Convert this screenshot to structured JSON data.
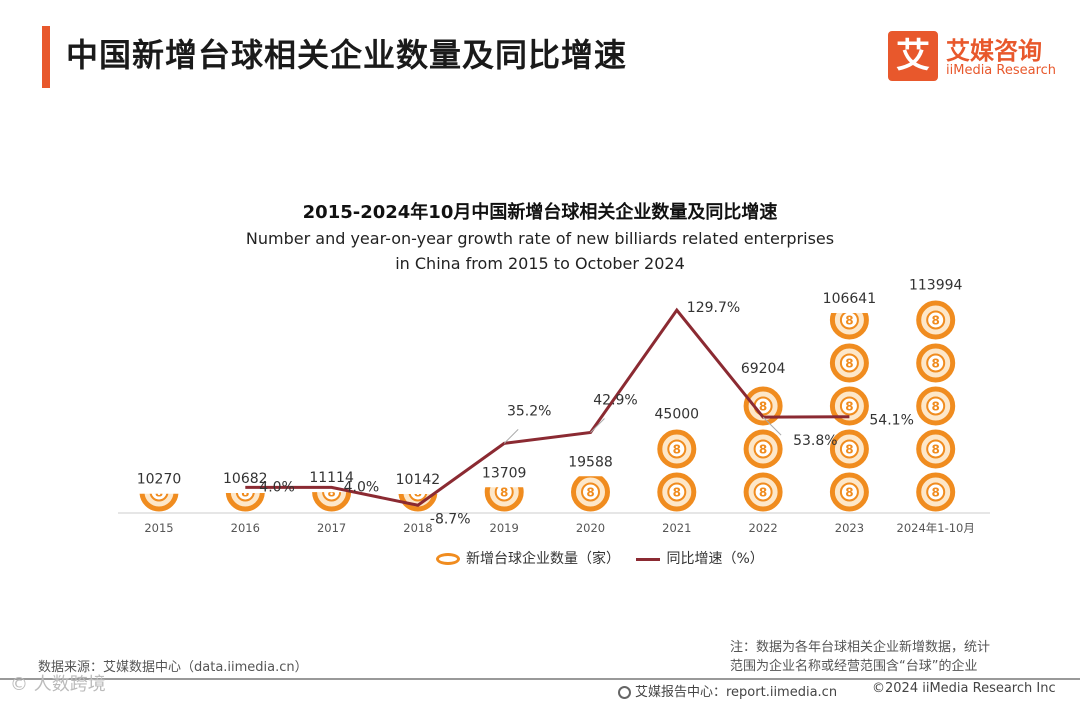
{
  "header": {
    "title": "中国新增台球相关企业数量及同比增速",
    "logo_mark": "艾",
    "logo_cn": "艾媒咨询",
    "logo_en": "iiMedia Research"
  },
  "chart_data": {
    "type": "bar",
    "title": "2015-2024年10月中国新增台球相关企业数量及同比增速",
    "subtitle_line1": "Number and year-on-year growth rate of new billiards related enterprises",
    "subtitle_line2": "in China from 2015 to October 2024",
    "categories": [
      "2015",
      "2016",
      "2017",
      "2018",
      "2019",
      "2020",
      "2021",
      "2022",
      "2023",
      "2024年1-10月"
    ],
    "series": [
      {
        "name": "新增台球企业数量（家）",
        "type": "bar",
        "color": "#f08c1f",
        "values": [
          10270,
          10682,
          11114,
          10142,
          13709,
          19588,
          45000,
          69204,
          106641,
          113994
        ],
        "labels": [
          "10270",
          "10682",
          "11114",
          "10142",
          "13709",
          "19588",
          "45000",
          "69204",
          "106641",
          "113994"
        ]
      },
      {
        "name": "同比增速（%）",
        "type": "line",
        "color": "#8b2a32",
        "values": [
          null,
          4.0,
          4.0,
          -8.7,
          35.2,
          42.9,
          129.7,
          53.8,
          54.1,
          null
        ],
        "labels": [
          "",
          "4.0%",
          "4.0%",
          "-8.7%",
          "35.2%",
          "42.9%",
          "129.7%",
          "53.8%",
          "54.1%",
          ""
        ]
      }
    ],
    "legend": "bottom"
  },
  "footer": {
    "source": "数据来源：艾媒数据中心（data.iimedia.cn）",
    "note_line1": "注：数据为各年台球相关企业新增数据，统计",
    "note_line2": "范围为企业名称或经营范围含“台球”的企业",
    "report_site": "艾媒报告中心：report.iimedia.cn",
    "copyright": "©2024  iiMedia Research  Inc",
    "watermark": "© 人数跨境"
  }
}
